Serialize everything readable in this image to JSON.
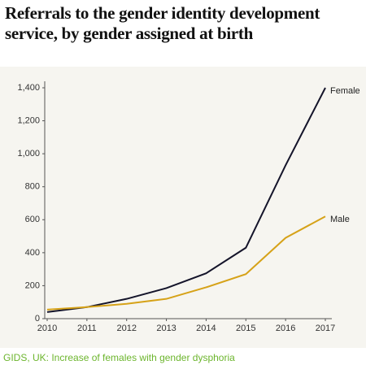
{
  "chart_data": {
    "type": "line",
    "title": "Referrals to the gender identity development service, by gender assigned at birth",
    "caption": "GIDS, UK: Increase of females with gender dysphoria",
    "x": [
      2010,
      2011,
      2012,
      2013,
      2014,
      2015,
      2016,
      2017
    ],
    "series": [
      {
        "name": "Female",
        "color": "#14142a",
        "values": [
          40,
          70,
          120,
          185,
          275,
          430,
          930,
          1400
        ]
      },
      {
        "name": "Male",
        "color": "#d6a218",
        "values": [
          55,
          70,
          90,
          120,
          190,
          270,
          490,
          620
        ]
      }
    ],
    "xlim": [
      2010,
      2017
    ],
    "xticks": [
      2010,
      2011,
      2012,
      2013,
      2014,
      2015,
      2016,
      2017
    ],
    "ylim": [
      0,
      1400
    ],
    "yticks": [
      0,
      200,
      400,
      600,
      800,
      {
        "value": 1000,
        "label": "1,000"
      },
      {
        "value": 1200,
        "label": "1,200"
      },
      {
        "value": 1400,
        "label": "1,400"
      }
    ],
    "grid": false
  }
}
